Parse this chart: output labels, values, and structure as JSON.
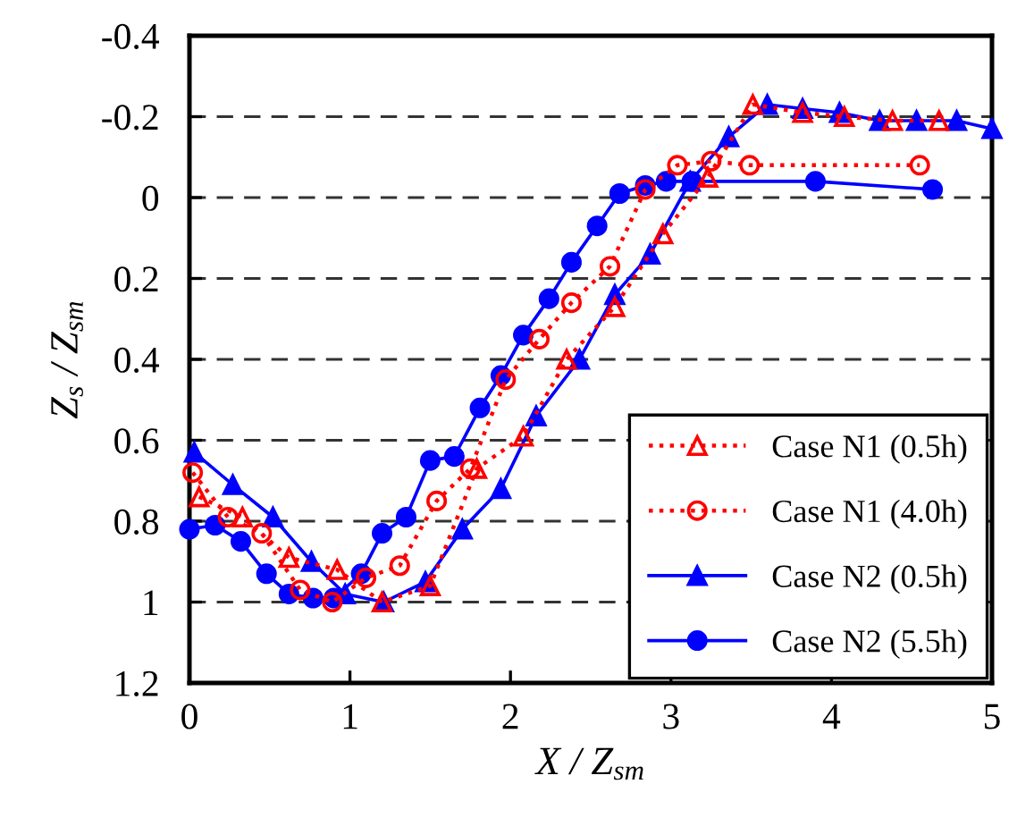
{
  "chart_data": {
    "type": "line",
    "xlabel": "X / Z$_{sm}$",
    "ylabel": "Z$_{s}$ / Z$_{sm}$",
    "xlim": [
      0,
      5
    ],
    "xticks": [
      0,
      1,
      2,
      3,
      4,
      5
    ],
    "ylim": [
      1.2,
      -0.4
    ],
    "yticks": [
      -0.4,
      -0.2,
      0,
      0.2,
      0.4,
      0.6,
      0.8,
      1,
      1.2
    ],
    "grid": "y",
    "legend": "bottom right",
    "series": [
      {
        "name": "Case N1 (0.5h)",
        "color": "#ff0000",
        "marker": "triangle",
        "line_style": "dotted",
        "x": [
          0.06,
          0.33,
          0.62,
          0.92,
          1.2,
          1.5,
          1.79,
          2.08,
          2.35,
          2.65,
          2.95,
          3.23,
          3.51,
          3.82,
          4.08,
          4.38,
          4.67
        ],
        "values": [
          0.74,
          0.79,
          0.89,
          0.92,
          1.0,
          0.96,
          0.67,
          0.59,
          0.4,
          0.27,
          0.09,
          -0.05,
          -0.23,
          -0.21,
          -0.2,
          -0.19,
          -0.19
        ]
      },
      {
        "name": "Case N1 (4.0h)",
        "color": "#ff0000",
        "marker": "circle",
        "line_style": "dotted",
        "x": [
          0.02,
          0.24,
          0.45,
          0.69,
          0.89,
          1.1,
          1.31,
          1.54,
          1.75,
          1.97,
          2.18,
          2.38,
          2.62,
          2.84,
          3.04,
          3.25,
          3.49,
          4.55
        ],
        "values": [
          0.68,
          0.79,
          0.83,
          0.97,
          1.0,
          0.94,
          0.91,
          0.75,
          0.67,
          0.45,
          0.35,
          0.26,
          0.17,
          -0.02,
          -0.08,
          -0.09,
          -0.08,
          -0.08
        ]
      },
      {
        "name": "Case N2 (0.5h)",
        "color": "#0000ff",
        "marker": "triangle",
        "line_style": "solid",
        "x": [
          0.03,
          0.27,
          0.52,
          0.76,
          0.97,
          1.21,
          1.47,
          1.7,
          1.94,
          2.16,
          2.43,
          2.65,
          2.87,
          3.12,
          3.36,
          3.6,
          3.82,
          4.05,
          4.3,
          4.53,
          4.78,
          5.0
        ],
        "values": [
          0.63,
          0.71,
          0.79,
          0.9,
          0.98,
          1.0,
          0.95,
          0.82,
          0.72,
          0.54,
          0.4,
          0.24,
          0.14,
          -0.04,
          -0.15,
          -0.23,
          -0.22,
          -0.21,
          -0.19,
          -0.19,
          -0.19,
          -0.17
        ]
      },
      {
        "name": "Case N2 (5.5h)",
        "color": "#0000ff",
        "marker": "circle",
        "line_style": "solid",
        "x": [
          0.0,
          0.16,
          0.32,
          0.48,
          0.62,
          0.77,
          0.9,
          1.07,
          1.2,
          1.35,
          1.5,
          1.65,
          1.81,
          1.94,
          2.08,
          2.24,
          2.38,
          2.54,
          2.68,
          2.84,
          2.97,
          3.13,
          3.9,
          4.63
        ],
        "values": [
          0.82,
          0.81,
          0.85,
          0.93,
          0.98,
          0.99,
          0.99,
          0.93,
          0.83,
          0.79,
          0.65,
          0.64,
          0.52,
          0.44,
          0.34,
          0.25,
          0.16,
          0.07,
          -0.01,
          -0.03,
          -0.04,
          -0.04,
          -0.04,
          -0.02
        ]
      }
    ]
  }
}
